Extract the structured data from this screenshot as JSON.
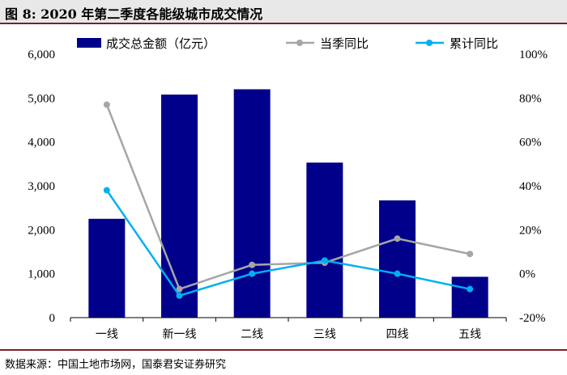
{
  "title": "图 8:  2020 年第二季度各能级城市成交情况",
  "source": "数据来源：中国土地市场网，国泰君安证券研究",
  "colors": {
    "bar": "#00008b",
    "quarter_line": "#a6a6a6",
    "cumulative_line": "#00b0f0"
  },
  "chart_data": {
    "type": "bar",
    "title": "",
    "categories": [
      "一线",
      "新一线",
      "二线",
      "三线",
      "四线",
      "五线"
    ],
    "y_left": {
      "min": 0,
      "max": 6000,
      "step": 1000,
      "ticks": [
        "0",
        "1,000",
        "2,000",
        "3,000",
        "4,000",
        "5,000",
        "6,000"
      ]
    },
    "y_right": {
      "min": -20,
      "max": 100,
      "step": 20,
      "ticks": [
        "-20%",
        "0%",
        "20%",
        "40%",
        "60%",
        "80%",
        "100%"
      ]
    },
    "series": [
      {
        "name": "成交总金额（亿元）",
        "type": "bar",
        "axis": "left",
        "values": [
          2250,
          5080,
          5200,
          3530,
          2670,
          930
        ]
      },
      {
        "name": "当季同比",
        "type": "line",
        "axis": "right",
        "values": [
          77,
          -7,
          4,
          5,
          16,
          9
        ]
      },
      {
        "name": "累计同比",
        "type": "line",
        "axis": "right",
        "values": [
          38,
          -10,
          0,
          6,
          0,
          -7
        ]
      }
    ],
    "legend_position": "top",
    "grid": false
  }
}
